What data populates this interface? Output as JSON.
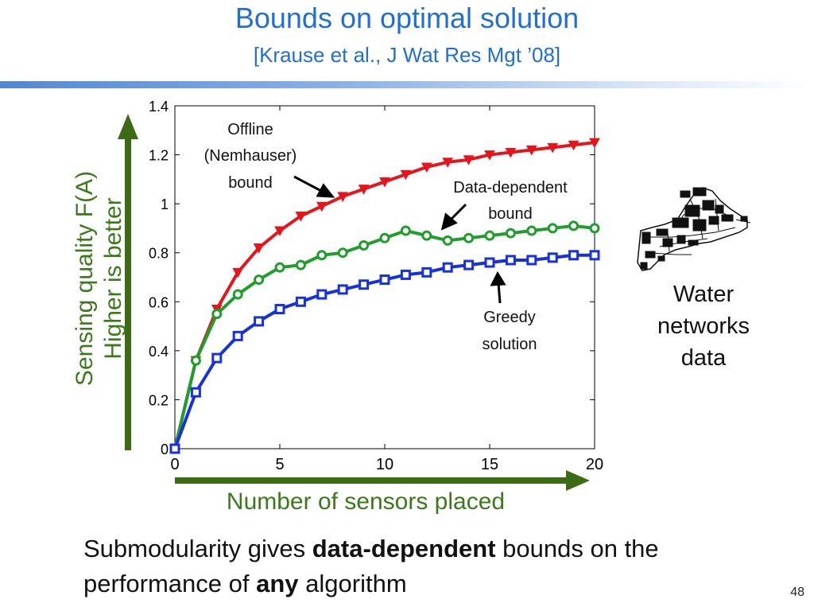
{
  "slide": {
    "title": "Bounds on optimal solution",
    "citation": "[Krause et al., J Wat Res Mgt ’08]",
    "y_arrow_label_line1": "Sensing quality F(A)",
    "y_arrow_label_line2": "Higher is better",
    "x_arrow_label": "Number of sensors placed",
    "side_caption_line1": "Water",
    "side_caption_line2": "networks",
    "side_caption_line3": "data",
    "bottom_text_1": "Submodularity gives ",
    "bottom_text_bold1": "data-dependent",
    "bottom_text_2": " bounds on the performance of ",
    "bottom_text_bold2": "any",
    "bottom_text_3": " algorithm",
    "page_number": "48",
    "colors": {
      "title": "#1f6fd6",
      "arrow": "#3b6b12",
      "offline": "#e8141b",
      "data_dependent": "#1e9e2a",
      "greedy": "#1730e0"
    }
  },
  "chart_data": {
    "type": "line",
    "xlim": [
      0,
      20
    ],
    "ylim": [
      0,
      1.4
    ],
    "x_ticks": [
      "0",
      "5",
      "10",
      "15",
      "20"
    ],
    "y_ticks": [
      "0",
      "0.2",
      "0.4",
      "0.6",
      "0.8",
      "1",
      "1.2",
      "1.4"
    ],
    "x": [
      0,
      1,
      2,
      3,
      4,
      5,
      6,
      7,
      8,
      9,
      10,
      11,
      12,
      13,
      14,
      15,
      16,
      17,
      18,
      19,
      20
    ],
    "grid": false,
    "series": [
      {
        "name": "Offline (Nemhauser) bound",
        "marker": "triangle-down",
        "color": "#e8141b",
        "values": [
          0,
          0.36,
          0.57,
          0.72,
          0.82,
          0.89,
          0.95,
          0.99,
          1.03,
          1.06,
          1.09,
          1.12,
          1.15,
          1.17,
          1.18,
          1.2,
          1.21,
          1.22,
          1.23,
          1.24,
          1.25
        ]
      },
      {
        "name": "Data-dependent bound",
        "marker": "circle",
        "color": "#1e9e2a",
        "values": [
          0,
          0.36,
          0.55,
          0.63,
          0.69,
          0.74,
          0.75,
          0.79,
          0.8,
          0.83,
          0.86,
          0.89,
          0.87,
          0.85,
          0.86,
          0.87,
          0.88,
          0.89,
          0.9,
          0.91,
          0.9
        ]
      },
      {
        "name": "Greedy solution",
        "marker": "square",
        "color": "#1730e0",
        "values": [
          0,
          0.23,
          0.37,
          0.46,
          0.52,
          0.57,
          0.6,
          0.63,
          0.65,
          0.67,
          0.69,
          0.71,
          0.72,
          0.74,
          0.75,
          0.76,
          0.77,
          0.77,
          0.78,
          0.79,
          0.79
        ]
      }
    ],
    "annotations": [
      {
        "lines": [
          "Offline",
          "(Nemhauser)",
          "bound"
        ]
      },
      {
        "lines": [
          "Data-dependent",
          "bound"
        ]
      },
      {
        "lines": [
          "Greedy",
          "solution"
        ]
      }
    ]
  }
}
